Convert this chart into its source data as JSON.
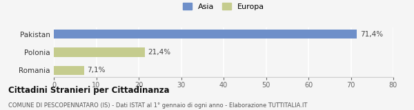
{
  "categories": [
    "Pakistan",
    "Polonia",
    "Romania"
  ],
  "values": [
    71.4,
    21.4,
    7.1
  ],
  "labels": [
    "71,4%",
    "21,4%",
    "7,1%"
  ],
  "colors": [
    "#6e8fc9",
    "#c5cc8e",
    "#c5cc8e"
  ],
  "xlim": [
    0,
    80
  ],
  "xticks": [
    0,
    10,
    20,
    30,
    40,
    50,
    60,
    70,
    80
  ],
  "legend_labels": [
    "Asia",
    "Europa"
  ],
  "legend_colors": [
    "#6e8fc9",
    "#c5cc8e"
  ],
  "title": "Cittadini Stranieri per Cittadinanza",
  "subtitle": "COMUNE DI PESCOPENNATARO (IS) - Dati ISTAT al 1° gennaio di ogni anno - Elaborazione TUTTITALIA.IT",
  "bar_height": 0.5,
  "background_color": "#f5f5f5"
}
